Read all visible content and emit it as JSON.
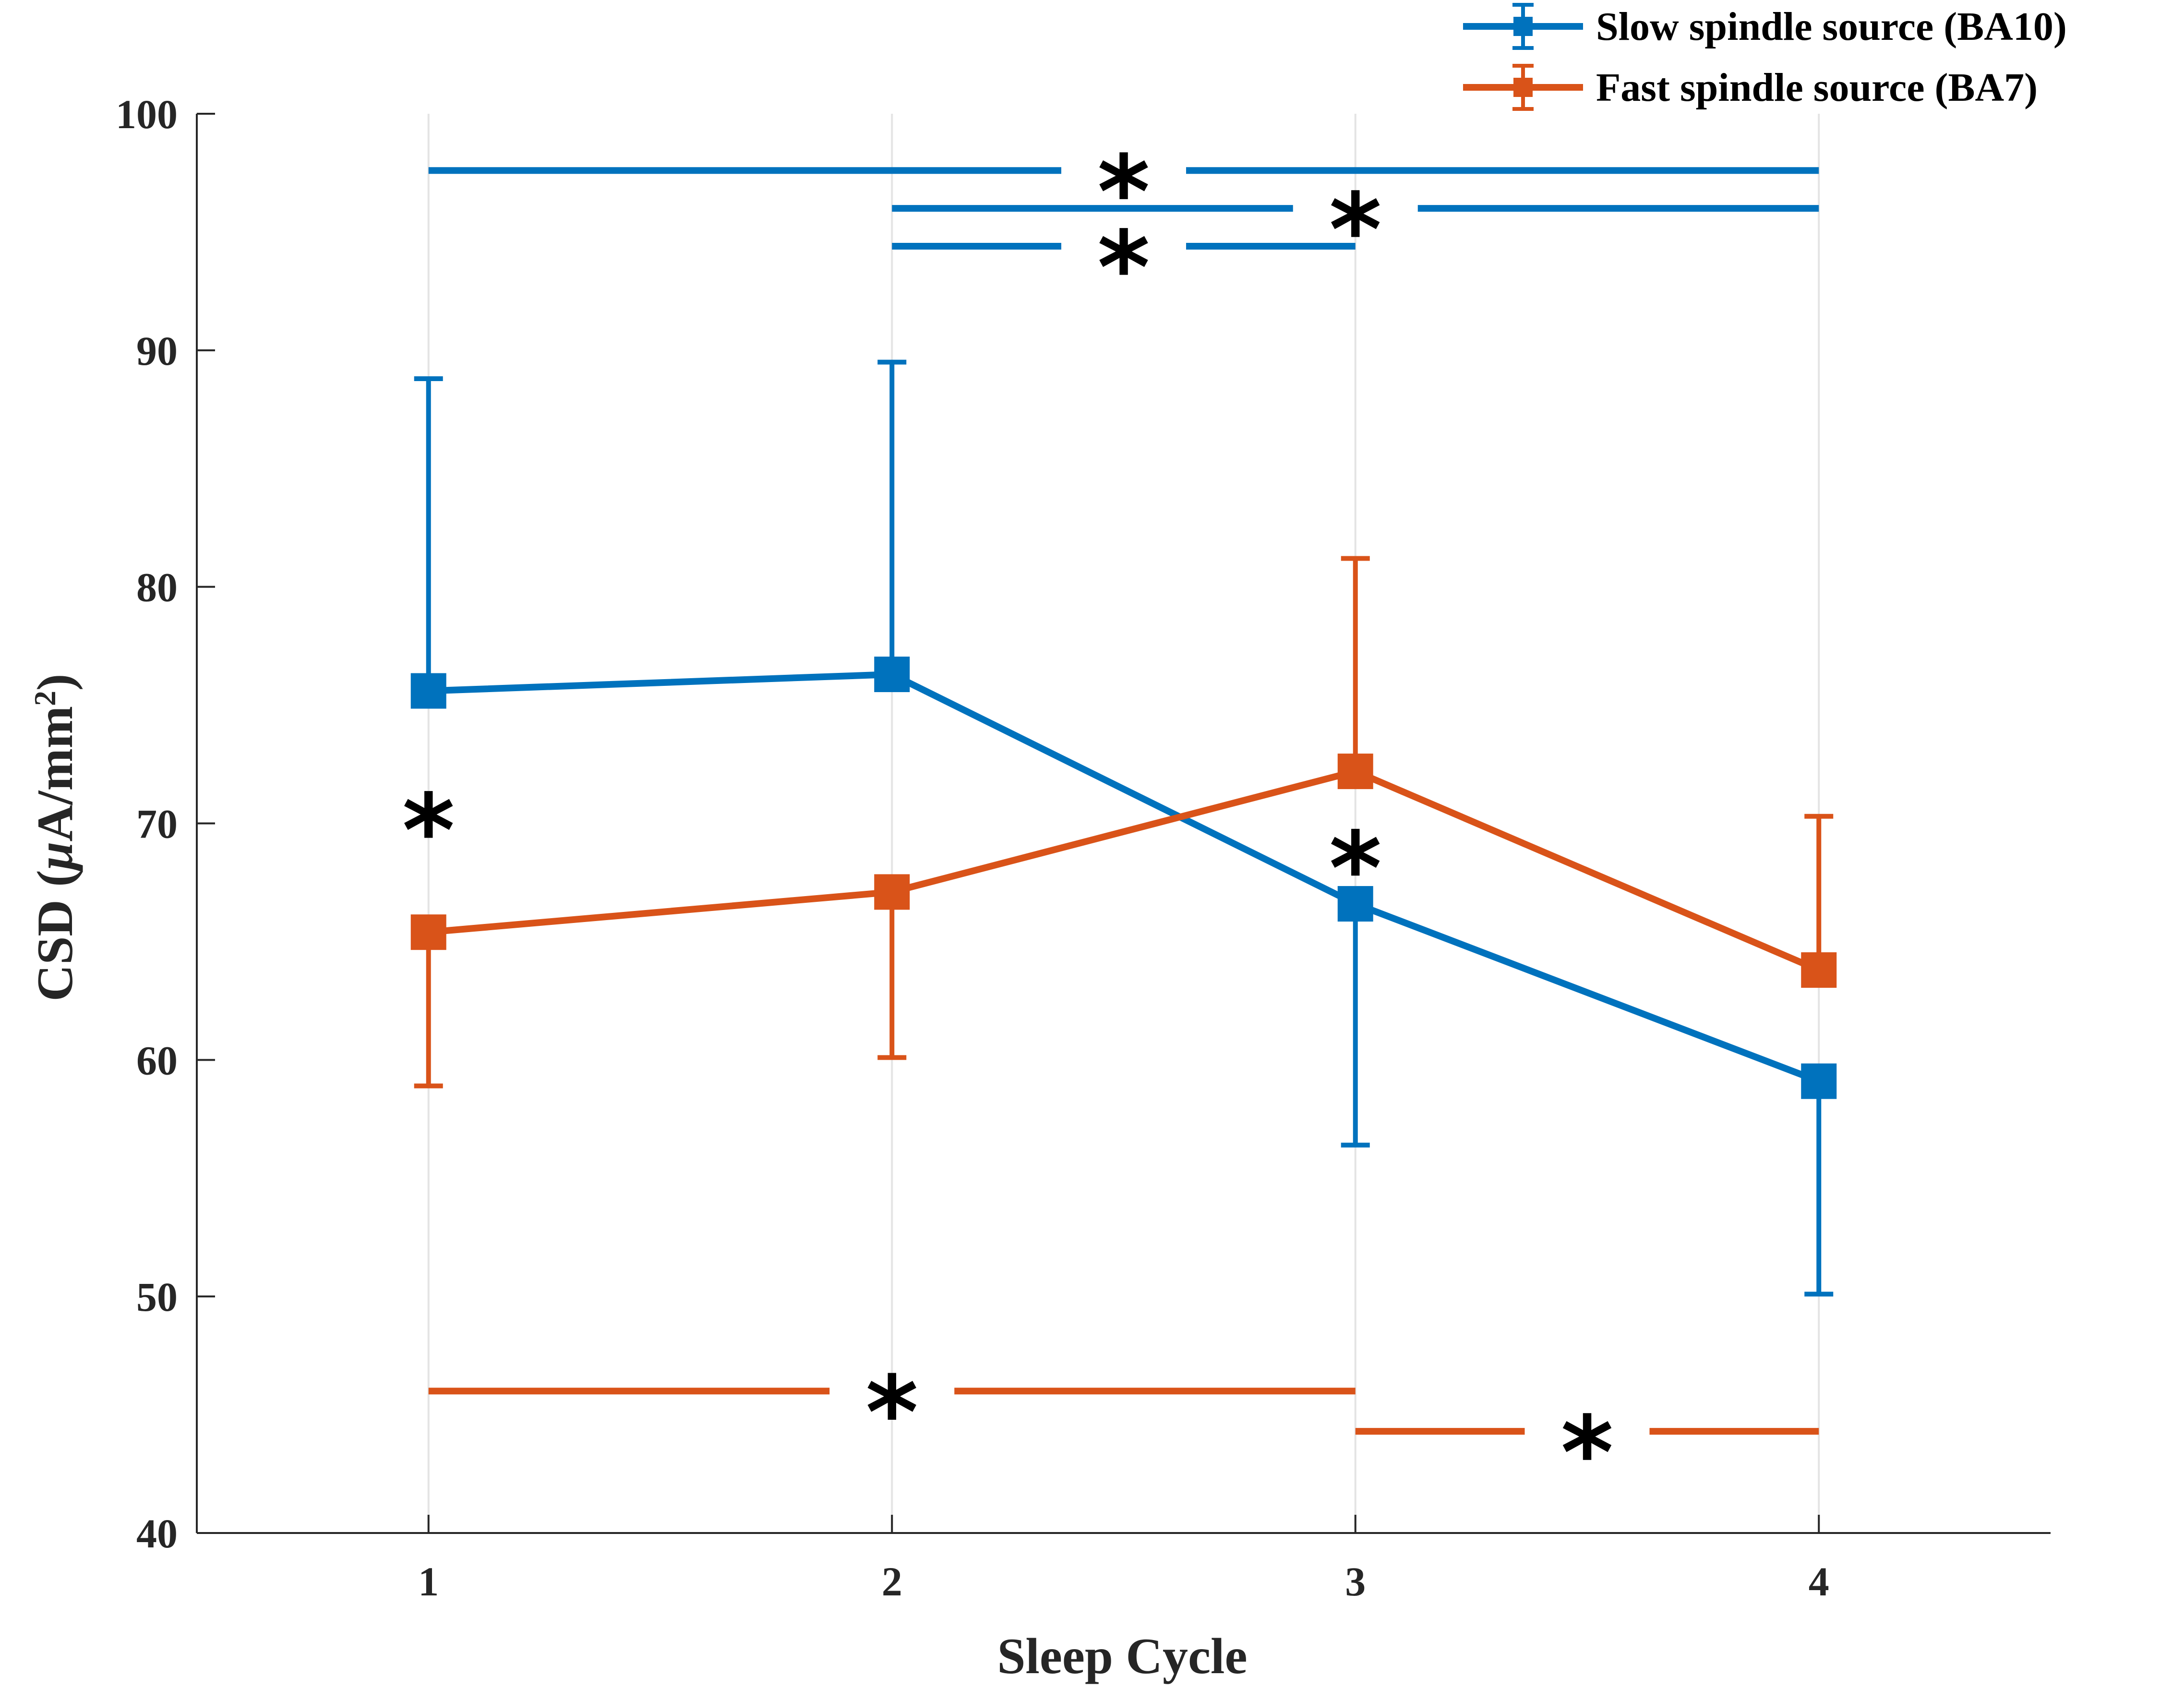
{
  "chart_data": {
    "type": "line",
    "title": "",
    "xlabel": "Sleep Cycle",
    "ylabel": {
      "prefix": "CSD (",
      "mu": "μ",
      "unit": "A/mm",
      "sup": "2",
      "suffix": ")"
    },
    "x": [
      1,
      2,
      3,
      4
    ],
    "xlim": [
      0.5,
      4.5
    ],
    "ylim": [
      40,
      100
    ],
    "xticks": [
      "1",
      "2",
      "3",
      "4"
    ],
    "yticks": [
      "40",
      "50",
      "60",
      "70",
      "80",
      "90",
      "100"
    ],
    "grid": "vertical",
    "legend_position": "top-right",
    "series": [
      {
        "name": "Slow spindle source (BA10)",
        "color": "#0072BD",
        "values": [
          75.6,
          76.3,
          66.6,
          59.1
        ],
        "error_upper": [
          88.8,
          89.5,
          66.6,
          59.1
        ],
        "error_lower": [
          75.6,
          76.3,
          56.4,
          50.1
        ]
      },
      {
        "name": "Fast spindle source (BA7)",
        "color": "#D95319",
        "values": [
          65.4,
          67.1,
          72.2,
          63.8
        ],
        "error_upper": [
          65.4,
          67.1,
          81.2,
          70.3
        ],
        "error_lower": [
          58.9,
          60.1,
          72.2,
          63.8
        ]
      }
    ],
    "significance_brackets": [
      {
        "series": 0,
        "x_start": 1,
        "x_end": 4,
        "y": 97.6,
        "label": "*"
      },
      {
        "series": 0,
        "x_start": 2,
        "x_end": 4,
        "y": 96.0,
        "label": "*"
      },
      {
        "series": 0,
        "x_start": 2,
        "x_end": 3,
        "y": 94.4,
        "label": "*"
      },
      {
        "series": 1,
        "x_start": 1,
        "x_end": 3,
        "y": 46.0,
        "label": "*"
      },
      {
        "series": 1,
        "x_start": 3,
        "x_end": 4,
        "y": 44.3,
        "label": "*"
      }
    ],
    "point_annotations": [
      {
        "x": 1,
        "y": 70.6,
        "label": "*"
      },
      {
        "x": 3,
        "y": 69.0,
        "label": "*"
      }
    ]
  }
}
